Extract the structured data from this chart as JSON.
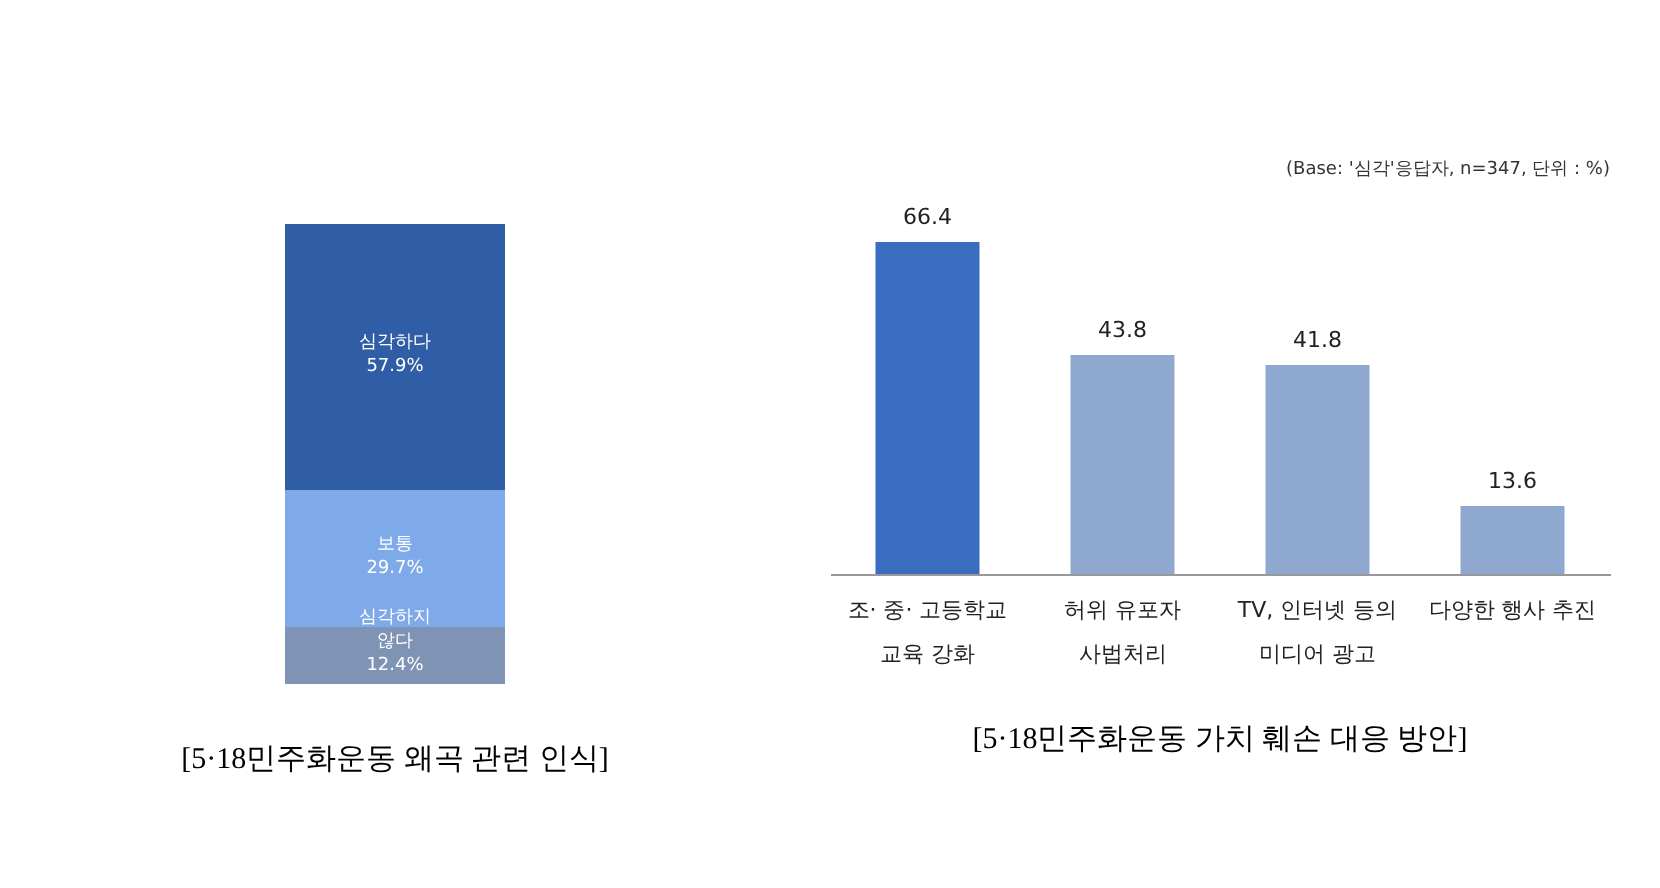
{
  "chart_data": [
    {
      "type": "bar",
      "title": "[5·18민주화운동 왜곡 관련 인식]",
      "stacked": true,
      "categories": [
        null
      ],
      "ylim": [
        0,
        100
      ],
      "series": [
        {
          "name": "심각하지 않다",
          "color": "#7f93b5",
          "values": [
            12.4
          ],
          "value_labels": [
            "12.4%"
          ]
        },
        {
          "name": "보통",
          "color": "#7eaaea",
          "values": [
            29.7
          ],
          "value_labels": [
            "29.7%"
          ]
        },
        {
          "name": "심각하다",
          "color": "#2f5ea6",
          "values": [
            57.9
          ],
          "value_labels": [
            "57.9%"
          ]
        }
      ]
    },
    {
      "type": "bar",
      "title": "[5·18민주화운동 가치 훼손 대응 방안]",
      "annotations": [
        "(Base: '심각'응답자, n=347, 단위 : %)"
      ],
      "categories": [
        "조· 중· 고등학교\n교육 강화",
        "허위 유포자\n사법처리",
        "TV, 인터넷 등의\n미디어 광고",
        "다양한 행사 추진"
      ],
      "values": [
        66.4,
        43.8,
        41.8,
        13.6
      ],
      "colors": [
        "#3a6cc0",
        "#8fa8d0",
        "#8fa8d0",
        "#8fa8d0"
      ],
      "data_labels": true
    }
  ]
}
